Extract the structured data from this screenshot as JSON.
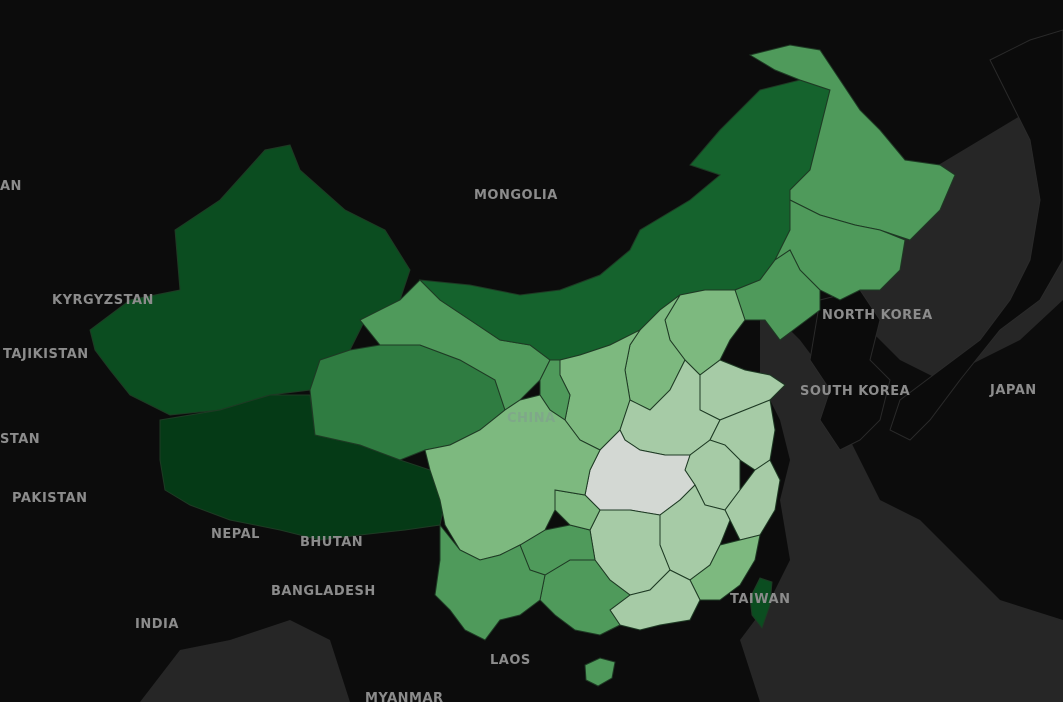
{
  "map": {
    "colors": {
      "ocean": "#262626",
      "land_dark": "#0b0b0b",
      "border": "#2a2a2a",
      "choropleth_scale": [
        "#d3d8d3",
        "#a6cba6",
        "#7db97f",
        "#4f9a5b",
        "#2f7c41",
        "#15632d",
        "#0b4d20",
        "#053a16"
      ]
    },
    "labels": {
      "mongolia": "MONGOLIA",
      "kyrgyzstan": "KYRGYZSTAN",
      "tajikistan": "TAJIKISTAN",
      "pakistan": "PAKISTAN",
      "nepal": "NEPAL",
      "bhutan": "BHUTAN",
      "bangladesh": "BANGLADESH",
      "india": "INDIA",
      "laos": "LAOS",
      "myanmar": "MYANMAR",
      "north_korea": "NORTH KOREA",
      "south_korea": "SOUTH KOREA",
      "japan": "JAPAN",
      "taiwan": "TAIWAN",
      "china": "CHINA",
      "edge_left_1": "AN",
      "edge_left_2": "STAN"
    }
  }
}
